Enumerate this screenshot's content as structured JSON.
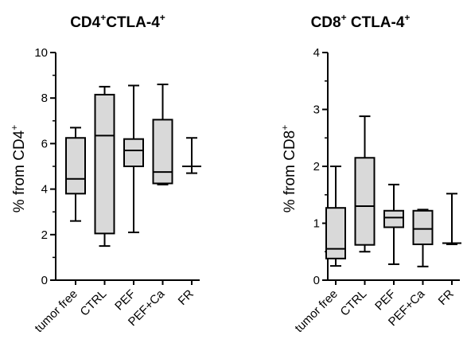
{
  "chart_data": [
    {
      "type": "box",
      "title": "CD4",
      "title_sup1": "+",
      "title_rest": "CTLA-4",
      "title_sup2": "+",
      "ylabel": "% from CD4",
      "ylabel_sup": "+",
      "ylim": [
        0,
        10
      ],
      "yticks": [
        0,
        2,
        4,
        6,
        8,
        10
      ],
      "ytick_labels": [
        "0",
        "2",
        "4",
        "6",
        "8",
        "10"
      ],
      "box_fill": "#d9d9d9",
      "categories": [
        "tumor free",
        "CTRL",
        "PEF",
        "PEF+Ca",
        "FR"
      ],
      "boxes": [
        {
          "whisker_low": 2.6,
          "q1": 3.8,
          "median": 4.45,
          "q3": 6.25,
          "whisker_high": 6.7,
          "box": true
        },
        {
          "whisker_low": 1.5,
          "q1": 2.05,
          "median": 6.35,
          "q3": 8.15,
          "whisker_high": 8.5,
          "box": true
        },
        {
          "whisker_low": 2.1,
          "q1": 5.0,
          "median": 5.7,
          "q3": 6.2,
          "whisker_high": 8.55,
          "box": true
        },
        {
          "whisker_low": 4.2,
          "q1": 4.25,
          "median": 4.75,
          "q3": 7.05,
          "whisker_high": 8.6,
          "box": true
        },
        {
          "whisker_low": 4.7,
          "q1": 5.0,
          "median": 5.0,
          "q3": 5.0,
          "whisker_high": 6.25,
          "box": false
        }
      ]
    },
    {
      "type": "box",
      "title": "CD8",
      "title_sup1": "+",
      "title_rest": " CTLA-4",
      "title_sup2": "+",
      "ylabel": "% from CD8",
      "ylabel_sup": "+",
      "ylim": [
        0,
        4
      ],
      "yticks": [
        0,
        1,
        2,
        3,
        4
      ],
      "ytick_labels": [
        "0",
        "1",
        "2",
        "3",
        "4"
      ],
      "box_fill": "#d9d9d9",
      "categories": [
        "tumor free",
        "CTRL",
        "PEF",
        "PEF+Ca",
        "FR"
      ],
      "boxes": [
        {
          "whisker_low": 0.25,
          "q1": 0.38,
          "median": 0.55,
          "q3": 1.27,
          "whisker_high": 2.0,
          "box": true
        },
        {
          "whisker_low": 0.5,
          "q1": 0.62,
          "median": 1.3,
          "q3": 2.15,
          "whisker_high": 2.88,
          "box": true
        },
        {
          "whisker_low": 0.28,
          "q1": 0.93,
          "median": 1.1,
          "q3": 1.22,
          "whisker_high": 1.68,
          "box": true
        },
        {
          "whisker_low": 0.24,
          "q1": 0.63,
          "median": 0.9,
          "q3": 1.22,
          "whisker_high": 1.24,
          "box": true
        },
        {
          "whisker_low": 0.63,
          "q1": 0.65,
          "median": 0.65,
          "q3": 0.65,
          "whisker_high": 1.52,
          "box": false
        }
      ]
    }
  ]
}
